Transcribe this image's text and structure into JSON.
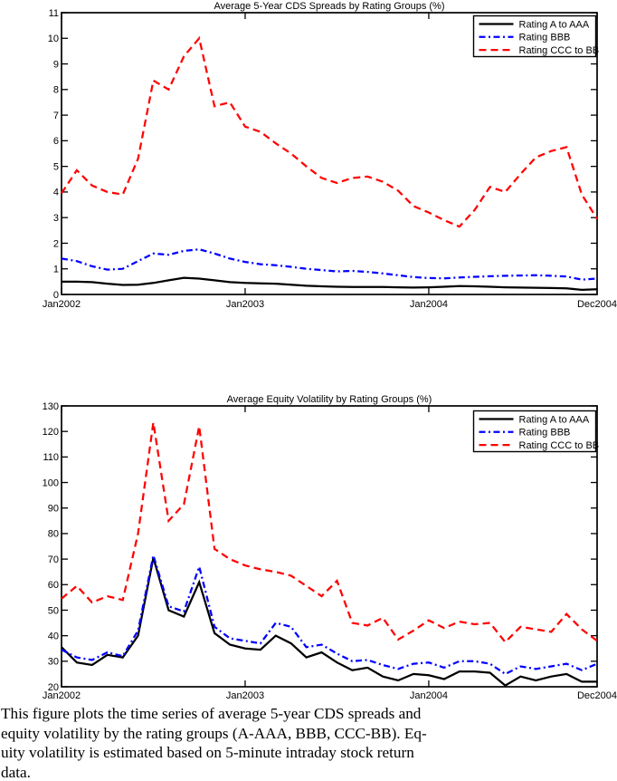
{
  "caption": {
    "lines": [
      "This figure plots the time series of average 5-year CDS spreads and",
      "equity volatility by the rating groups (A-AAA, BBB, CCC-BB). Eq-",
      "uity volatility is estimated based on 5-minute intraday stock return",
      "data."
    ]
  },
  "chart_data": [
    {
      "id": "cds-spreads",
      "type": "line",
      "title": "Average 5-Year CDS Spreads by Rating Groups (%)",
      "grid": false,
      "x_axis": {
        "start": "Jan2002",
        "end": "Dec2004",
        "frequency": "monthly",
        "n_points": 36,
        "tick_labels": [
          "Jan2002",
          "Jan2003",
          "Jan2004",
          "Dec2004"
        ],
        "tick_indices": [
          0,
          12,
          24,
          35
        ]
      },
      "y_axis": {
        "min": 0,
        "max": 11,
        "ticks": [
          0,
          1,
          2,
          3,
          4,
          5,
          6,
          7,
          8,
          9,
          10,
          11
        ]
      },
      "legend": {
        "position": "top-right",
        "entries": [
          "Rating A to AAA",
          "Rating BBB",
          "Rating CCC to BB"
        ]
      },
      "series": [
        {
          "name": "Rating A to AAA",
          "color": "#000000",
          "line_style": "solid",
          "values": [
            0.5,
            0.5,
            0.48,
            0.42,
            0.37,
            0.38,
            0.45,
            0.55,
            0.65,
            0.62,
            0.55,
            0.48,
            0.45,
            0.43,
            0.42,
            0.38,
            0.34,
            0.32,
            0.3,
            0.29,
            0.29,
            0.29,
            0.28,
            0.27,
            0.28,
            0.3,
            0.33,
            0.32,
            0.3,
            0.28,
            0.27,
            0.26,
            0.25,
            0.24,
            0.18,
            0.2
          ]
        },
        {
          "name": "Rating BBB",
          "color": "#0000ff",
          "line_style": "dash-dot",
          "values": [
            1.4,
            1.3,
            1.1,
            0.97,
            1.0,
            1.3,
            1.6,
            1.55,
            1.7,
            1.76,
            1.6,
            1.4,
            1.27,
            1.18,
            1.14,
            1.08,
            1.0,
            0.95,
            0.9,
            0.92,
            0.88,
            0.82,
            0.75,
            0.68,
            0.64,
            0.63,
            0.66,
            0.69,
            0.71,
            0.73,
            0.74,
            0.75,
            0.73,
            0.7,
            0.58,
            0.62
          ]
        },
        {
          "name": "Rating CCC to BB",
          "color": "#ff0000",
          "line_style": "dashed",
          "values": [
            3.95,
            4.85,
            4.25,
            4.0,
            3.9,
            5.3,
            8.35,
            8.0,
            9.3,
            10.0,
            7.35,
            7.5,
            6.55,
            6.35,
            5.9,
            5.5,
            5.0,
            4.55,
            4.35,
            4.55,
            4.6,
            4.4,
            4.05,
            3.45,
            3.2,
            2.9,
            2.65,
            3.3,
            4.2,
            4.0,
            4.7,
            5.35,
            5.6,
            5.75,
            3.9,
            2.95
          ]
        }
      ]
    },
    {
      "id": "equity-volatility",
      "type": "line",
      "title": "Average Equity Volatility by Rating Groups (%)",
      "grid": false,
      "x_axis": {
        "start": "Jan2002",
        "end": "Dec2004",
        "frequency": "monthly",
        "n_points": 36,
        "tick_labels": [
          "Jan2002",
          "Jan2003",
          "Jan2004",
          "Dec2004"
        ],
        "tick_indices": [
          0,
          12,
          24,
          35
        ]
      },
      "y_axis": {
        "min": 20,
        "max": 130,
        "ticks": [
          20,
          30,
          40,
          50,
          60,
          70,
          80,
          90,
          100,
          110,
          120,
          130
        ]
      },
      "legend": {
        "position": "top-right",
        "entries": [
          "Rating A to AAA",
          "Rating BBB",
          "Rating CCC to BB"
        ]
      },
      "series": [
        {
          "name": "Rating A to AAA",
          "color": "#000000",
          "line_style": "solid",
          "values": [
            35.5,
            29.5,
            28.5,
            32.5,
            31.5,
            40,
            70.5,
            50,
            47.5,
            61,
            41,
            36.5,
            35,
            34.5,
            40,
            37,
            31.5,
            33.5,
            29.5,
            26.5,
            27.5,
            24,
            22.5,
            25,
            24.5,
            23,
            26,
            26,
            25.5,
            20.5,
            24,
            22.5,
            24,
            25,
            22,
            22
          ]
        },
        {
          "name": "Rating BBB",
          "color": "#0000ff",
          "line_style": "dash-dot",
          "values": [
            34.5,
            31.5,
            30.5,
            33.5,
            32,
            42,
            71.5,
            51.5,
            49.5,
            67,
            43.5,
            39,
            38,
            37,
            45,
            43.5,
            35.5,
            36.5,
            33,
            30,
            30.5,
            28.5,
            27,
            29,
            29.5,
            27.5,
            30,
            30,
            29,
            25,
            28,
            27,
            28,
            29,
            26.5,
            29
          ]
        },
        {
          "name": "Rating CCC to BB",
          "color": "#ff0000",
          "line_style": "dashed",
          "values": [
            54.5,
            59.5,
            53,
            55.5,
            54,
            80,
            123.5,
            85,
            91.5,
            122,
            74,
            70,
            67.5,
            66,
            65,
            63.5,
            59.5,
            55.5,
            61.5,
            45,
            44,
            47,
            38.5,
            42,
            46,
            43,
            45.5,
            44.5,
            45,
            37.5,
            43.5,
            42.5,
            41.5,
            48.5,
            42.5,
            38
          ]
        }
      ]
    }
  ]
}
